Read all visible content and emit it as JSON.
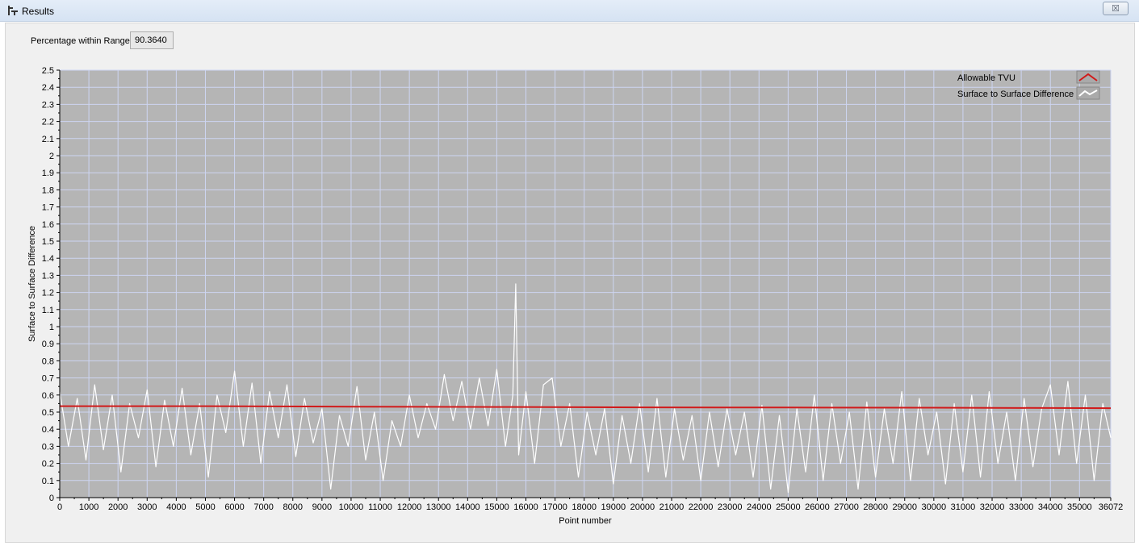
{
  "window": {
    "title": "Results",
    "close_glyph": "☒"
  },
  "stats": {
    "percentage_label": "Percentage within Range",
    "percentage_value": "90.3640"
  },
  "colors": {
    "plot_bg": "#b5b5b5",
    "grid": "#cdd5f2",
    "tvu": "#d11a1a",
    "diff": "#ffffff"
  },
  "chart_data": {
    "type": "line",
    "title": "",
    "xlabel": "Point number",
    "ylabel": "Surface to Surface Difference",
    "xlim": [
      0,
      36072
    ],
    "ylim": [
      0,
      2.5
    ],
    "grid": true,
    "legend_position": "top-right",
    "x_ticks": [
      "0",
      "1000",
      "2000",
      "3000",
      "4000",
      "5000",
      "6000",
      "7000",
      "8000",
      "9000",
      "10000",
      "11000",
      "12000",
      "13000",
      "14000",
      "15000",
      "16000",
      "17000",
      "18000",
      "19000",
      "20000",
      "21000",
      "22000",
      "23000",
      "24000",
      "25000",
      "26000",
      "27000",
      "28000",
      "29000",
      "30000",
      "31000",
      "32000",
      "33000",
      "34000",
      "35000",
      "36072"
    ],
    "y_ticks": [
      "0",
      "0.1",
      "0.2",
      "0.3",
      "0.4",
      "0.5",
      "0.6",
      "0.7",
      "0.8",
      "0.9",
      "1",
      "1.1",
      "1.2",
      "1.3",
      "1.4",
      "1.5",
      "1.6",
      "1.7",
      "1.8",
      "1.9",
      "2",
      "2.1",
      "2.2",
      "2.3",
      "2.4",
      "2.5"
    ],
    "series": [
      {
        "name": "Allowable TVU",
        "color": "#d11a1a",
        "x": [
          0,
          5000,
          10000,
          15000,
          20000,
          25000,
          30000,
          36072
        ],
        "y": [
          0.535,
          0.535,
          0.532,
          0.53,
          0.528,
          0.527,
          0.526,
          0.523
        ]
      },
      {
        "name": "Surface to Surface Difference",
        "color": "#ffffff",
        "x": [
          0,
          300,
          600,
          900,
          1200,
          1500,
          1800,
          2100,
          2400,
          2700,
          3000,
          3300,
          3600,
          3900,
          4200,
          4500,
          4800,
          5100,
          5400,
          5700,
          6000,
          6300,
          6600,
          6900,
          7200,
          7500,
          7800,
          8100,
          8400,
          8700,
          9000,
          9300,
          9600,
          9900,
          10200,
          10500,
          10800,
          11100,
          11400,
          11700,
          12000,
          12300,
          12600,
          12900,
          13200,
          13500,
          13800,
          14100,
          14400,
          14700,
          15000,
          15300,
          15550,
          15650,
          15750,
          16000,
          16300,
          16600,
          16900,
          17200,
          17500,
          17800,
          18100,
          18400,
          18700,
          19000,
          19300,
          19600,
          19900,
          20200,
          20500,
          20800,
          21100,
          21400,
          21700,
          22000,
          22300,
          22600,
          22900,
          23200,
          23500,
          23800,
          24100,
          24400,
          24700,
          25000,
          25300,
          25600,
          25900,
          26200,
          26500,
          26800,
          27100,
          27400,
          27700,
          28000,
          28300,
          28600,
          28900,
          29200,
          29500,
          29800,
          30100,
          30400,
          30700,
          31000,
          31300,
          31600,
          31900,
          32200,
          32500,
          32800,
          33100,
          33400,
          33700,
          34000,
          34300,
          34600,
          34900,
          35200,
          35500,
          35800,
          36072
        ],
        "y": [
          0.62,
          0.3,
          0.58,
          0.22,
          0.66,
          0.28,
          0.6,
          0.15,
          0.55,
          0.35,
          0.63,
          0.18,
          0.57,
          0.3,
          0.64,
          0.25,
          0.55,
          0.12,
          0.6,
          0.38,
          0.74,
          0.3,
          0.67,
          0.2,
          0.62,
          0.35,
          0.66,
          0.24,
          0.58,
          0.32,
          0.52,
          0.05,
          0.48,
          0.3,
          0.65,
          0.22,
          0.5,
          0.1,
          0.45,
          0.3,
          0.6,
          0.35,
          0.55,
          0.4,
          0.72,
          0.45,
          0.68,
          0.4,
          0.7,
          0.42,
          0.75,
          0.3,
          0.6,
          1.25,
          0.25,
          0.62,
          0.2,
          0.66,
          0.7,
          0.3,
          0.55,
          0.12,
          0.5,
          0.25,
          0.52,
          0.08,
          0.48,
          0.2,
          0.55,
          0.15,
          0.58,
          0.12,
          0.52,
          0.22,
          0.48,
          0.1,
          0.5,
          0.18,
          0.52,
          0.25,
          0.5,
          0.12,
          0.54,
          0.05,
          0.48,
          0.03,
          0.52,
          0.15,
          0.6,
          0.1,
          0.55,
          0.2,
          0.5,
          0.05,
          0.56,
          0.12,
          0.52,
          0.2,
          0.62,
          0.1,
          0.58,
          0.25,
          0.5,
          0.08,
          0.55,
          0.15,
          0.6,
          0.12,
          0.62,
          0.2,
          0.5,
          0.1,
          0.58,
          0.18,
          0.52,
          0.66,
          0.25,
          0.68,
          0.2,
          0.6,
          0.1,
          0.55,
          0.35
        ]
      }
    ]
  }
}
